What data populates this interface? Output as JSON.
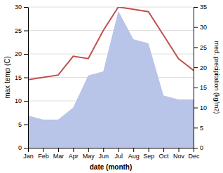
{
  "chart_data": {
    "type": "line",
    "categories": [
      "Jan",
      "Feb",
      "Mar",
      "Apr",
      "May",
      "Jun",
      "Jul",
      "Aug",
      "Sep",
      "Oct",
      "Nov",
      "Dec"
    ],
    "series": [
      {
        "type": "area",
        "axis": "y2",
        "color": "#b8c4e8",
        "values": [
          8.0,
          7.0,
          7.0,
          10.0,
          18.0,
          19.0,
          34.0,
          27.0,
          26.0,
          13.0,
          12.0,
          12.0
        ]
      },
      {
        "type": "line",
        "color": "#c0504d",
        "values": [
          14.5,
          15.0,
          15.5,
          19.5,
          19.0,
          25.0,
          30.0,
          29.5,
          29.0,
          24.0,
          19.0,
          16.5
        ]
      }
    ],
    "xlabel": "date (month)",
    "ylabel": "max temp (C)",
    "y2label": "med. precipitation (kg/m2)",
    "ylim": [
      0,
      30
    ],
    "yticks": [
      0,
      5,
      10,
      15,
      20,
      25,
      30
    ],
    "y2lim": [
      0,
      35
    ],
    "y2ticks": [
      0,
      5,
      10,
      15,
      20,
      25,
      30,
      35
    ],
    "grid": true
  }
}
